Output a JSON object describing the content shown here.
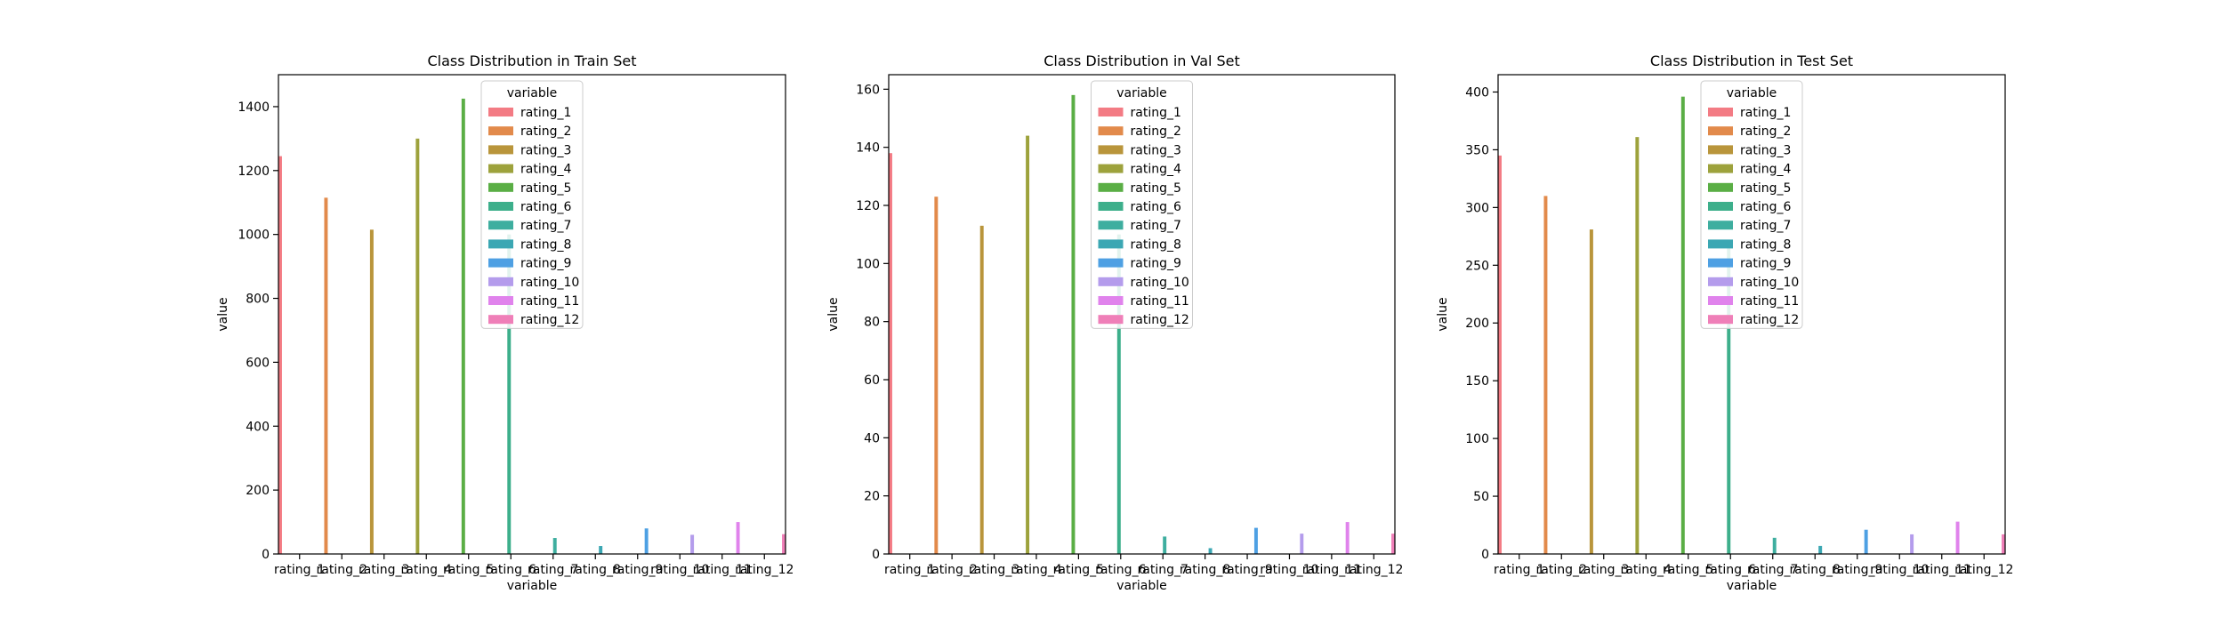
{
  "legend_title": "variable",
  "chart_data": [
    {
      "type": "bar",
      "title": "Class Distribution in Train Set",
      "xlabel": "variable",
      "ylabel": "value",
      "ylim": [
        0,
        1500
      ],
      "yticks": [
        0,
        200,
        400,
        600,
        800,
        1000,
        1200,
        1400
      ],
      "categories": [
        "rating_1",
        "rating_2",
        "rating_3",
        "rating_4",
        "rating_5",
        "rating_6",
        "rating_7",
        "rating_8",
        "rating_9",
        "rating_10",
        "rating_11",
        "rating_12"
      ],
      "values": [
        1245,
        1115,
        1015,
        1300,
        1425,
        1000,
        50,
        25,
        80,
        60,
        100,
        62
      ],
      "legend": "top-center",
      "grid": false
    },
    {
      "type": "bar",
      "title": "Class Distribution in Val Set",
      "xlabel": "variable",
      "ylabel": "value",
      "ylim": [
        0,
        165
      ],
      "yticks": [
        0,
        20,
        40,
        60,
        80,
        100,
        120,
        140,
        160
      ],
      "categories": [
        "rating_1",
        "rating_2",
        "rating_3",
        "rating_4",
        "rating_5",
        "rating_6",
        "rating_7",
        "rating_8",
        "rating_9",
        "rating_10",
        "rating_11",
        "rating_12"
      ],
      "values": [
        138,
        123,
        113,
        144,
        158,
        110,
        6,
        2,
        9,
        7,
        11,
        7
      ],
      "legend": "top-center",
      "grid": false
    },
    {
      "type": "bar",
      "title": "Class Distribution in Test Set",
      "xlabel": "variable",
      "ylabel": "value",
      "ylim": [
        0,
        415
      ],
      "yticks": [
        0,
        50,
        100,
        150,
        200,
        250,
        300,
        350,
        400
      ],
      "categories": [
        "rating_1",
        "rating_2",
        "rating_3",
        "rating_4",
        "rating_5",
        "rating_6",
        "rating_7",
        "rating_8",
        "rating_9",
        "rating_10",
        "rating_11",
        "rating_12"
      ],
      "values": [
        345,
        310,
        281,
        361,
        396,
        270,
        14,
        7,
        21,
        17,
        28,
        17
      ],
      "legend": "top-center",
      "grid": false
    }
  ],
  "series_colors": [
    "#f37b84",
    "#e28a4b",
    "#b9953b",
    "#9da23c",
    "#5aae45",
    "#3daf8b",
    "#3eae9f",
    "#3ba7b3",
    "#4ea0e3",
    "#b49cec",
    "#e083ec",
    "#ef7fb8"
  ]
}
